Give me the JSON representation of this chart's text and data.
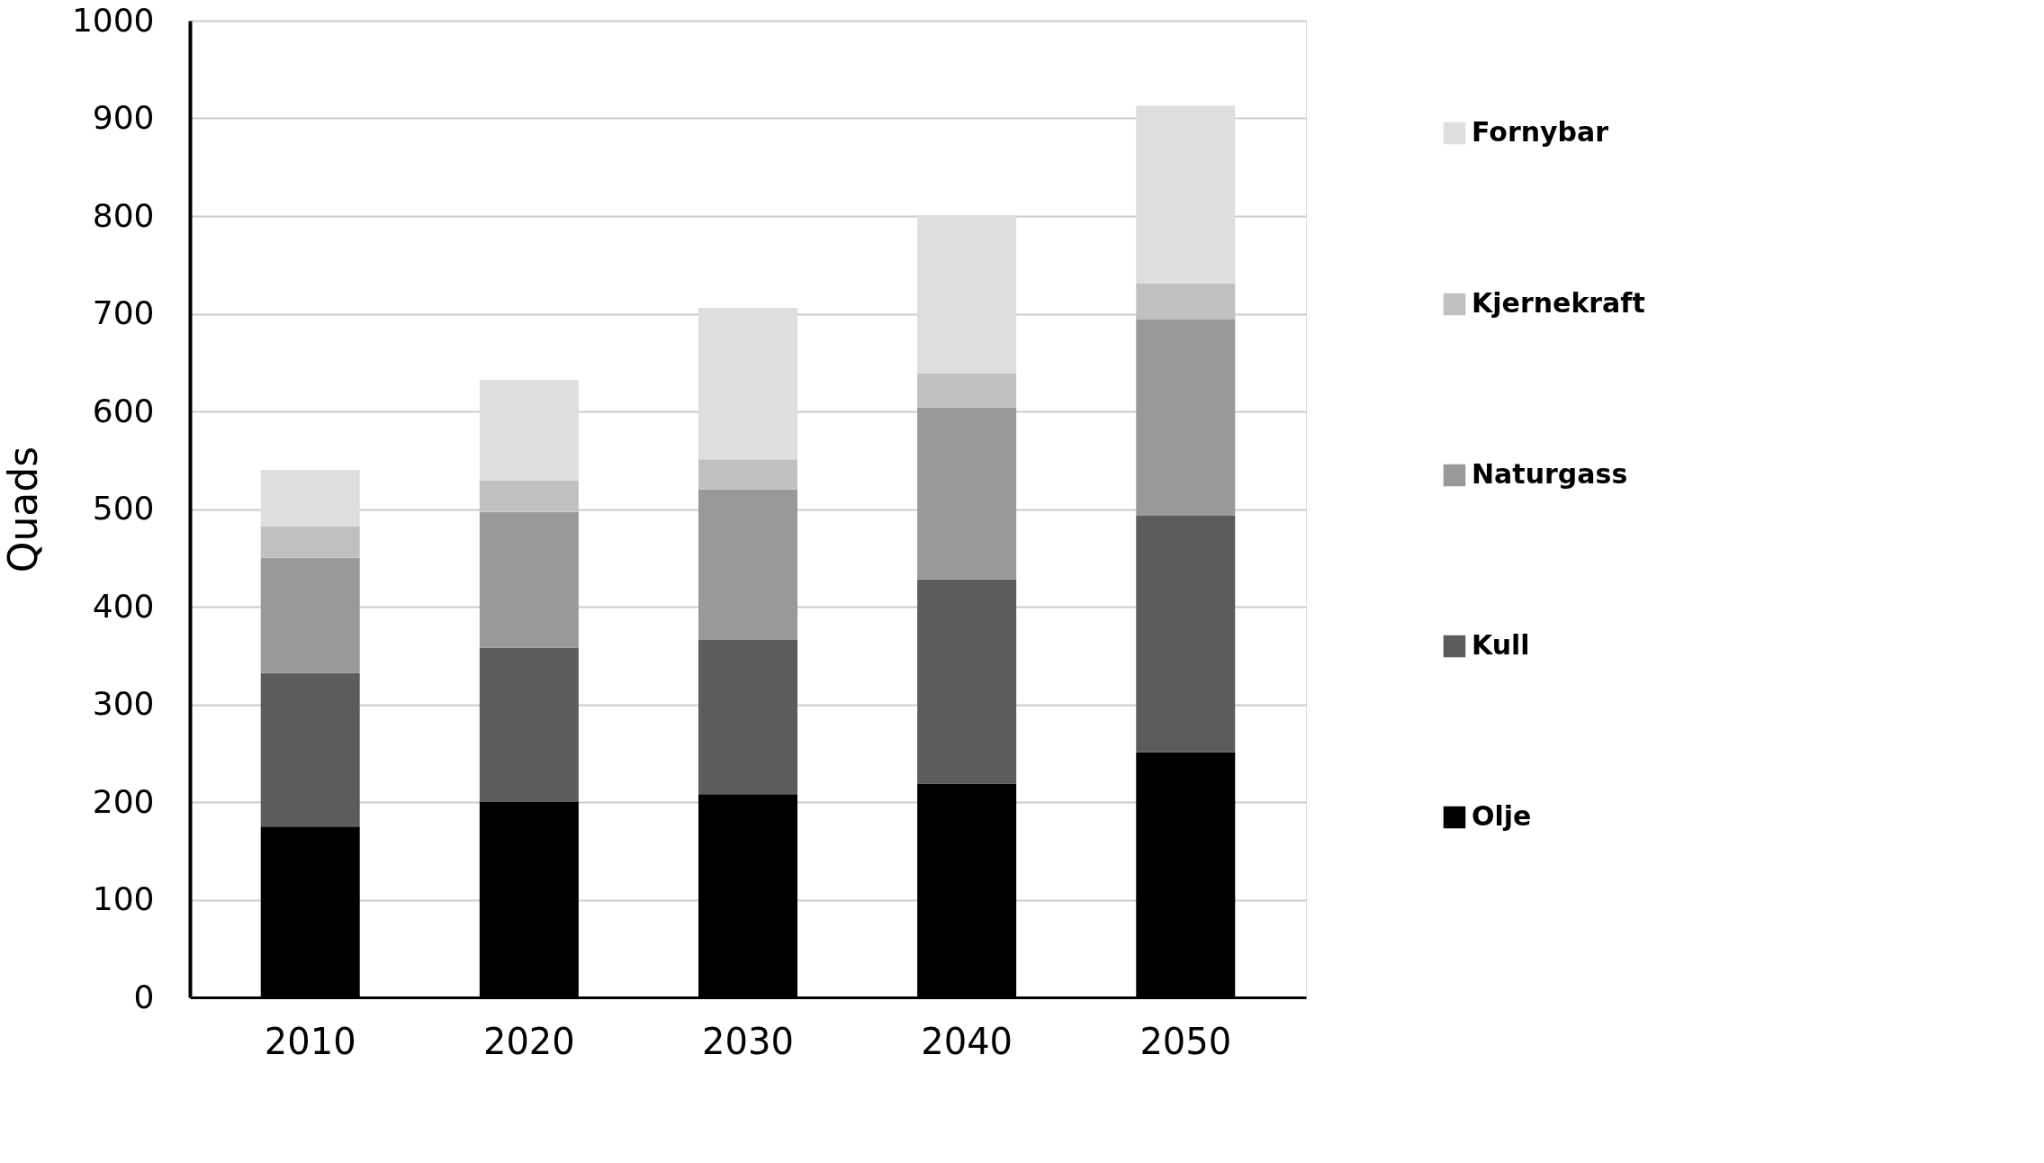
{
  "chart_data": {
    "type": "bar",
    "stacked": true,
    "ylabel": "Quads",
    "categories": [
      "2010",
      "2020",
      "2030",
      "2040",
      "2050"
    ],
    "series": [
      {
        "name": "Olje",
        "color": "#000000",
        "values": [
          175,
          200,
          208,
          219,
          251
        ]
      },
      {
        "name": "Kull",
        "color": "#5c5c5c",
        "values": [
          157,
          158,
          158,
          209,
          242
        ]
      },
      {
        "name": "Naturgass",
        "color": "#999999",
        "values": [
          118,
          139,
          154,
          176,
          201
        ]
      },
      {
        "name": "Kjernekraft",
        "color": "#c0c0c0",
        "values": [
          32,
          32,
          31,
          35,
          37
        ]
      },
      {
        "name": "Fornybar",
        "color": "#dedede",
        "values": [
          58,
          103,
          155,
          162,
          182
        ]
      }
    ],
    "ylim": [
      0,
      1000
    ],
    "yticks": [
      0,
      100,
      200,
      300,
      400,
      500,
      600,
      700,
      800,
      900,
      1000
    ],
    "grid": "y",
    "legend": "right"
  }
}
